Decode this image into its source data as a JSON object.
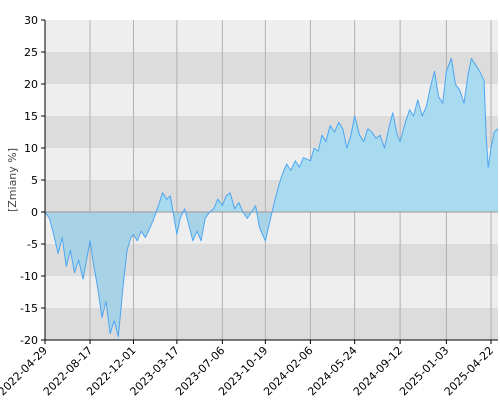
{
  "chart_data": {
    "type": "area",
    "ylabel": "[Zmiany %]",
    "ylim": [
      -20,
      30
    ],
    "y_ticks": [
      30,
      25,
      20,
      15,
      10,
      5,
      0,
      -5,
      -10,
      -15,
      -20
    ],
    "x_range": [
      "2022-04-29",
      "2025-05-09"
    ],
    "x_ticks": [
      "2022-04-29",
      "2022-08-17",
      "2022-12-01",
      "2023-03-17",
      "2023-07-06",
      "2023-10-19",
      "2024-02-06",
      "2024-05-24",
      "2024-09-12",
      "2025-01-03",
      "2025-04-22"
    ],
    "grid": true,
    "colors": {
      "line": "#4da6f0",
      "fill_positive": "#a8daf0",
      "fill_negative": "#a8d2e6",
      "band_dark": "#dcdcdc",
      "band_light": "#eeeeee",
      "vgrid": "#b0b0b0",
      "zero_line": "#999999"
    },
    "series": [
      {
        "x": [
          "2022-04-29",
          "2022-05-10",
          "2022-05-20",
          "2022-05-31",
          "2022-06-10",
          "2022-06-20",
          "2022-06-30",
          "2022-07-10",
          "2022-07-20",
          "2022-07-31",
          "2022-08-17",
          "2022-08-25",
          "2022-09-05",
          "2022-09-15",
          "2022-09-25",
          "2022-10-05",
          "2022-10-15",
          "2022-10-25",
          "2022-11-05",
          "2022-11-15",
          "2022-11-25",
          "2022-12-01",
          "2022-12-10",
          "2022-12-20",
          "2022-12-30",
          "2023-01-10",
          "2023-01-20",
          "2023-01-31",
          "2023-02-10",
          "2023-02-20",
          "2023-03-01",
          "2023-03-17",
          "2023-03-25",
          "2023-04-05",
          "2023-04-15",
          "2023-04-25",
          "2023-05-05",
          "2023-05-15",
          "2023-05-25",
          "2023-06-05",
          "2023-06-15",
          "2023-06-25",
          "2023-07-06",
          "2023-07-15",
          "2023-07-25",
          "2023-08-05",
          "2023-08-15",
          "2023-08-25",
          "2023-09-05",
          "2023-09-15",
          "2023-09-25",
          "2023-10-05",
          "2023-10-19",
          "2023-10-30",
          "2023-11-10",
          "2023-11-20",
          "2023-11-30",
          "2023-12-10",
          "2023-12-20",
          "2023-12-31",
          "2024-01-10",
          "2024-01-20",
          "2024-02-06",
          "2024-02-15",
          "2024-02-25",
          "2024-03-05",
          "2024-03-15",
          "2024-03-25",
          "2024-04-05",
          "2024-04-15",
          "2024-04-25",
          "2024-05-05",
          "2024-05-15",
          "2024-05-24",
          "2024-06-05",
          "2024-06-15",
          "2024-06-25",
          "2024-07-05",
          "2024-07-15",
          "2024-07-25",
          "2024-08-05",
          "2024-08-15",
          "2024-08-25",
          "2024-09-05",
          "2024-09-12",
          "2024-09-25",
          "2024-10-05",
          "2024-10-15",
          "2024-10-25",
          "2024-11-05",
          "2024-11-15",
          "2024-11-25",
          "2024-12-05",
          "2024-12-15",
          "2024-12-25",
          "2025-01-03",
          "2025-01-15",
          "2025-01-25",
          "2025-02-05",
          "2025-02-15",
          "2025-02-25",
          "2025-03-05",
          "2025-03-15",
          "2025-03-25",
          "2025-04-05",
          "2025-04-10",
          "2025-04-15",
          "2025-04-22",
          "2025-04-30",
          "2025-05-09"
        ],
        "values": [
          0.0,
          -1.0,
          -3.5,
          -6.5,
          -4.0,
          -8.5,
          -6.0,
          -9.5,
          -7.5,
          -10.5,
          -4.5,
          -8.0,
          -12.0,
          -16.5,
          -14.0,
          -19.0,
          -17.0,
          -19.5,
          -12.0,
          -6.0,
          -4.0,
          -3.5,
          -4.5,
          -3.0,
          -4.0,
          -2.5,
          -1.0,
          1.0,
          3.0,
          2.0,
          2.5,
          -3.5,
          -1.0,
          0.5,
          -2.0,
          -4.5,
          -3.0,
          -4.5,
          -1.0,
          0.0,
          0.5,
          2.0,
          1.0,
          2.5,
          3.0,
          0.5,
          1.5,
          0.0,
          -1.0,
          0.0,
          1.0,
          -2.5,
          -4.5,
          -1.5,
          1.5,
          4.0,
          6.0,
          7.5,
          6.5,
          8.0,
          7.0,
          8.5,
          8.0,
          10.0,
          9.5,
          12.0,
          11.0,
          13.5,
          12.5,
          14.0,
          13.0,
          10.0,
          12.0,
          15.0,
          12.0,
          11.0,
          13.0,
          12.5,
          11.5,
          12.0,
          10.0,
          13.0,
          15.5,
          12.0,
          11.0,
          14.0,
          16.0,
          15.0,
          17.5,
          15.0,
          16.5,
          19.5,
          22.0,
          18.0,
          17.0,
          22.0,
          24.0,
          20.0,
          19.0,
          17.0,
          21.5,
          24.0,
          23.0,
          22.0,
          20.5,
          12.0,
          7.0,
          10.0,
          12.5,
          13.0
        ]
      }
    ]
  }
}
